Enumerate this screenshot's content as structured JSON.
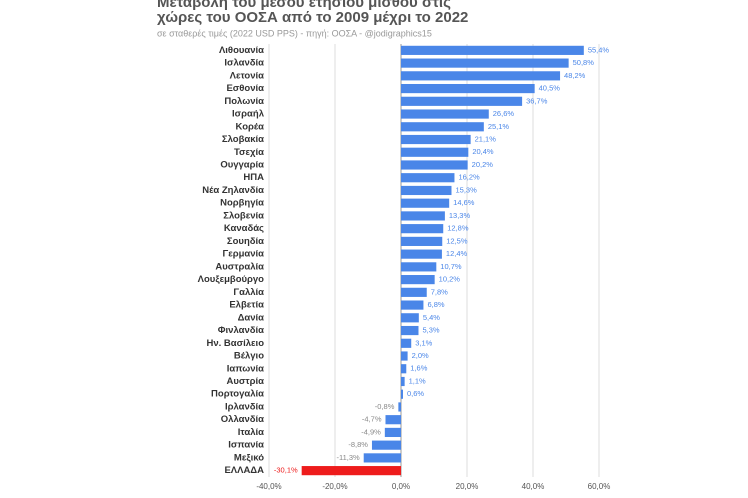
{
  "chart_data": {
    "type": "hbar",
    "title": [
      "Μεταβολή του μέσου ετήσιου μισθού στις",
      "χώρες του ΟΟΣΑ από το 2009 μέχρι το 2022"
    ],
    "subtitle": "σε σταθερές τιμές (2022 USD PPS) - πηγή: ΟΟΣΑ - @jodigraphics15",
    "categories": [
      "Λιθουανία",
      "Ισλανδία",
      "Λετονία",
      "Εσθονία",
      "Πολωνία",
      "Ισραήλ",
      "Κορέα",
      "Σλοβακία",
      "Τσεχία",
      "Ουγγαρία",
      "ΗΠΑ",
      "Νέα Ζηλανδία",
      "Νορβηγία",
      "Σλοβενία",
      "Καναδάς",
      "Σουηδία",
      "Γερμανία",
      "Αυστραλία",
      "Λουξεμβούργο",
      "Γαλλία",
      "Ελβετία",
      "Δανία",
      "Φινλανδία",
      "Ην. Βασίλειο",
      "Βέλγιο",
      "Ιαπωνία",
      "Αυστρία",
      "Πορτογαλία",
      "Ιρλανδία",
      "Ολλανδία",
      "Ιταλία",
      "Ισπανία",
      "Μεξικό",
      "ΕΛΛΑΔΑ"
    ],
    "values": [
      55.4,
      50.8,
      48.2,
      40.5,
      36.7,
      26.6,
      25.1,
      21.1,
      20.4,
      20.2,
      16.2,
      15.3,
      14.6,
      13.3,
      12.8,
      12.5,
      12.4,
      10.7,
      10.2,
      7.8,
      6.8,
      5.4,
      5.3,
      3.1,
      2.0,
      1.6,
      1.1,
      0.6,
      -0.8,
      -4.7,
      -4.9,
      -8.8,
      -11.3,
      -30.1
    ],
    "value_labels": [
      "55,4%",
      "50,8%",
      "48,2%",
      "40,5%",
      "36,7%",
      "26,6%",
      "25,1%",
      "21,1%",
      "20,4%",
      "20,2%",
      "16,2%",
      "15,3%",
      "14,6%",
      "13,3%",
      "12,8%",
      "12,5%",
      "12,4%",
      "10,7%",
      "10,2%",
      "7,8%",
      "6,8%",
      "5,4%",
      "5,3%",
      "3,1%",
      "2,0%",
      "1,6%",
      "1,1%",
      "0,6%",
      "-0,8%",
      "-4,7%",
      "-4,9%",
      "-8,8%",
      "-11,3%",
      "-30,1%"
    ],
    "color": "#4a86e8",
    "highlight_color": "#ee1c1c",
    "highlight": [
      33
    ],
    "xlim": [
      -40,
      60
    ],
    "xticks": [
      {
        "value": -40,
        "label": "-40,0%"
      },
      {
        "value": -20,
        "label": "-20,0%"
      },
      {
        "value": 0,
        "label": "0,0%"
      },
      {
        "value": 20,
        "label": "20,0%"
      },
      {
        "value": 40,
        "label": "40,0%"
      },
      {
        "value": 60,
        "label": "60,0%"
      }
    ],
    "grid": true
  }
}
